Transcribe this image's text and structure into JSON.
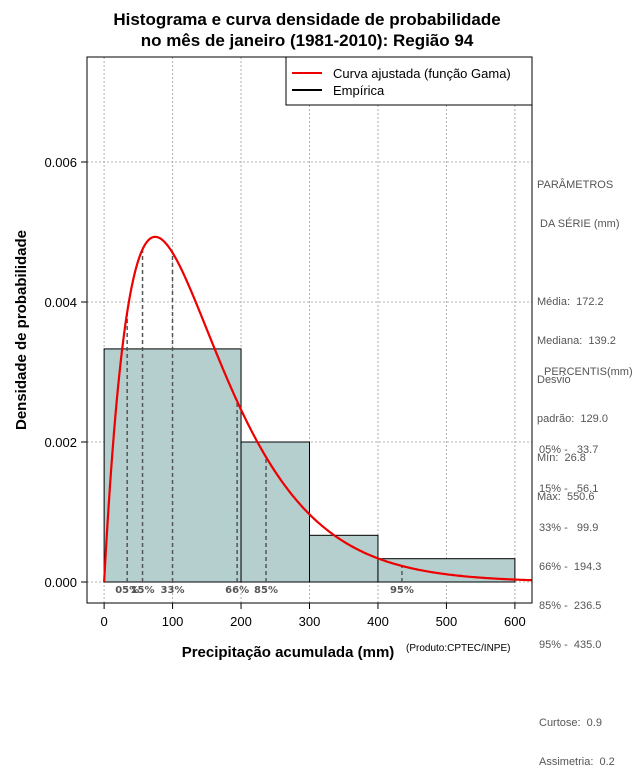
{
  "chart_data": {
    "type": "histogram",
    "title_line1": "Histograma e curva densidade de probabilidade",
    "title_line2": "no mês de janeiro (1981-2010): Região 94",
    "xlabel": "Precipitação acumulada (mm)",
    "ylabel": "Densidade de probabilidade",
    "credit": "(Produto:CPTEC/INPE)",
    "xlim": [
      -25,
      625
    ],
    "ylim": [
      -0.0003,
      0.0075
    ],
    "x_ticks": [
      0,
      100,
      200,
      300,
      400,
      500,
      600
    ],
    "x_tick_labels": [
      "0",
      "100",
      "200",
      "300",
      "400",
      "500",
      "600"
    ],
    "y_ticks": [
      0,
      0.002,
      0.004,
      0.006
    ],
    "y_tick_labels": [
      "0.000",
      "0.002",
      "0.004",
      "0.006"
    ],
    "grid": true,
    "bins": [
      {
        "from": 0,
        "to": 200,
        "density": 0.00333
      },
      {
        "from": 200,
        "to": 300,
        "density": 0.002
      },
      {
        "from": 300,
        "to": 400,
        "density": 0.000667
      },
      {
        "from": 400,
        "to": 600,
        "density": 0.000333
      }
    ],
    "bar_color": "#b5cece",
    "curve_color": "#ee0000",
    "gamma_fit": {
      "shape": 2.0,
      "scale": 74.6
    },
    "percentile_lines": [
      {
        "x": 33.7,
        "label": "05%"
      },
      {
        "x": 56.1,
        "label": "15%"
      },
      {
        "x": 99.9,
        "label": "33%"
      },
      {
        "x": 194.3,
        "label": "66%"
      },
      {
        "x": 236.5,
        "label": "85%"
      },
      {
        "x": 435.0,
        "label": "95%"
      }
    ],
    "legend": [
      {
        "label": "Curva ajustada (função Gama)",
        "color": "#ee0000"
      },
      {
        "label": "Empírica",
        "color": "#000000"
      }
    ],
    "legend_position": "top-right"
  },
  "params": {
    "heading1": "PARÂMETROS",
    "heading2": " DA SÉRIE (mm)",
    "media": "Média:  172.2",
    "mediana": "Mediana:  139.2",
    "desvio1": "Desvio",
    "desvio2": "padrão:  129.0",
    "min": "Mín:  26.8",
    "max": "Máx:  550.6"
  },
  "percentis": {
    "heading": "PERCENTIS(mm)",
    "p05": "05% -   33.7",
    "p15": "15% -   56.1",
    "p33": "33% -   99.9",
    "p66": "66% -  194.3",
    "p85": "85% -  236.5",
    "p95": "95% -  435.0",
    "curtose": "Curtose:  0.9",
    "assimetria": "Assimetria:  0.2"
  }
}
